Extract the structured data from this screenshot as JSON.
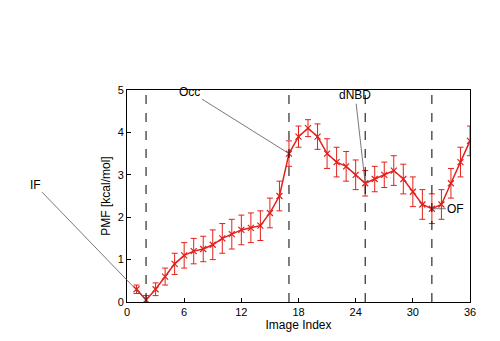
{
  "chart_data": {
    "type": "line",
    "marker": "x",
    "x_label": "Image Index",
    "y_label": "PMF [kcal/mol]",
    "x": [
      1,
      2,
      3,
      4,
      5,
      6,
      7,
      8,
      9,
      10,
      11,
      12,
      13,
      14,
      15,
      16,
      17,
      18,
      19,
      20,
      21,
      22,
      23,
      24,
      25,
      26,
      27,
      28,
      29,
      30,
      31,
      32,
      33,
      34,
      35,
      36
    ],
    "series": [
      {
        "color": "#e3201b",
        "values": [
          0.3,
          0.05,
          0.3,
          0.6,
          0.9,
          1.1,
          1.2,
          1.25,
          1.35,
          1.5,
          1.6,
          1.7,
          1.75,
          1.8,
          2.1,
          2.5,
          3.5,
          3.9,
          4.1,
          3.9,
          3.5,
          3.3,
          3.2,
          3.0,
          2.8,
          2.9,
          3.0,
          3.1,
          2.9,
          2.6,
          2.3,
          2.2,
          2.3,
          2.8,
          3.3,
          3.8
        ],
        "errors": [
          0.1,
          0.1,
          0.15,
          0.2,
          0.25,
          0.3,
          0.3,
          0.3,
          0.35,
          0.35,
          0.35,
          0.35,
          0.35,
          0.35,
          0.35,
          0.35,
          0.3,
          0.25,
          0.2,
          0.3,
          0.35,
          0.35,
          0.35,
          0.35,
          0.3,
          0.3,
          0.3,
          0.35,
          0.35,
          0.35,
          0.35,
          0.35,
          0.35,
          0.35,
          0.35,
          0.35
        ]
      }
    ],
    "xlim": [
      0,
      36
    ],
    "xticks": [
      0,
      6,
      12,
      18,
      24,
      30,
      36
    ],
    "ylim": [
      0,
      5
    ],
    "yticks": [
      0,
      1,
      2,
      3,
      4,
      5
    ],
    "vlines": [
      2,
      17,
      25,
      32
    ],
    "annotations": [
      {
        "text": "IF",
        "x": 2,
        "y": 0.05
      },
      {
        "text": "Occ",
        "x": 17,
        "y": 3.5
      },
      {
        "text": "dNBD",
        "x": 25,
        "y": 2.8
      },
      {
        "text": "OF",
        "x": 32,
        "y": 2.2
      }
    ],
    "grid": false
  }
}
